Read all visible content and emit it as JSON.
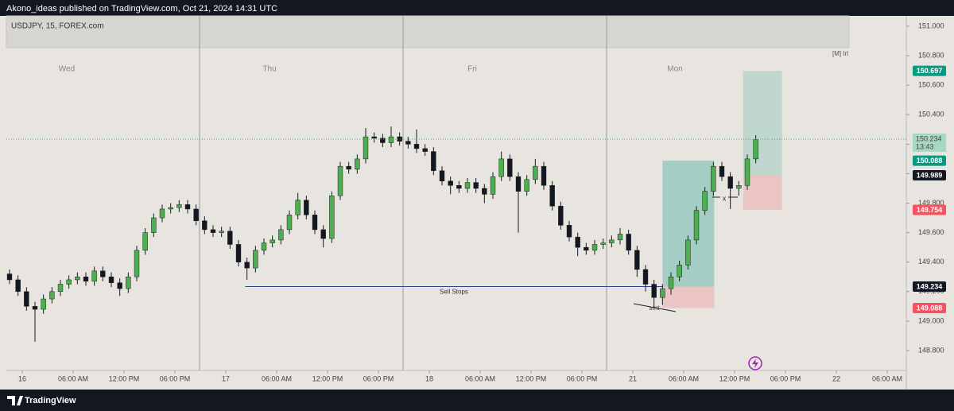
{
  "header": "Akono_ideas published on TradingView.com, Oct 21, 2024 14:31 UTC",
  "footer": "TradingView",
  "chart_data": {
    "type": "candlestick",
    "title": "USDJPY, 15, FOREX.com",
    "day_labels": [
      "Wed",
      "Thu",
      "Fri",
      "Mon"
    ],
    "indicator_label": "[M] Irl",
    "up_color": "#4caf50",
    "down_color": "#131722",
    "x": [
      -1.5,
      -0.5,
      0.5,
      1.5,
      2.5,
      3.5,
      4.5,
      5.5,
      6.5,
      7.5,
      8.5,
      9.5,
      10.5,
      11.5,
      12.5,
      13.5,
      14.5,
      15.5,
      16.5,
      17.5,
      18.5,
      19.5,
      20.5,
      21.5,
      22.5,
      23.5,
      24.5,
      25.5,
      26.5,
      27.5,
      28.5,
      29.5,
      30.5,
      31.5,
      32.5,
      33.5,
      34.5,
      35.5,
      36.5,
      37.5,
      38.5,
      39.5,
      40.5,
      41.5,
      42.5,
      43.5,
      44.5,
      45.5,
      46.5,
      47.5,
      48.5,
      49.5,
      50.5,
      51.5,
      52.5,
      53.5,
      54.5,
      55.5,
      56.5,
      57.5,
      58.5,
      59.5,
      60.5,
      61.5,
      62.5,
      63.5,
      64.5,
      65.5,
      66.5,
      67.5,
      68.5,
      69.5,
      70.5,
      71.5,
      72.5,
      73.5,
      74.5,
      75.5,
      76.5,
      77.5,
      78.5,
      79.5,
      80.5,
      81.5,
      82.5,
      83.5,
      84.5,
      85.5,
      86.5
    ],
    "open": [
      149.32,
      149.28,
      149.2,
      149.1,
      149.08,
      149.15,
      149.2,
      149.25,
      149.28,
      149.3,
      149.27,
      149.34,
      149.3,
      149.26,
      149.22,
      149.3,
      149.48,
      149.6,
      149.7,
      149.76,
      149.77,
      149.79,
      149.76,
      149.68,
      149.62,
      149.6,
      149.61,
      149.52,
      149.4,
      149.36,
      149.48,
      149.53,
      149.55,
      149.62,
      149.72,
      149.82,
      149.72,
      149.62,
      149.56,
      149.85,
      150.05,
      150.03,
      150.1,
      150.25,
      150.24,
      150.21,
      150.25,
      150.22,
      150.2,
      150.17,
      150.15,
      150.02,
      149.95,
      149.92,
      149.9,
      149.94,
      149.9,
      149.86,
      149.98,
      150.1,
      149.98,
      149.88,
      149.96,
      150.05,
      149.92,
      149.78,
      149.65,
      149.57,
      149.5,
      149.48,
      149.52,
      149.53,
      149.55,
      149.59,
      149.48,
      149.35,
      149.25,
      149.16,
      149.22,
      149.3,
      149.38,
      149.55,
      149.75,
      149.88,
      150.05,
      149.98,
      149.9,
      149.92,
      150.1
    ],
    "high": [
      149.35,
      149.31,
      149.23,
      149.13,
      149.18,
      149.23,
      149.28,
      149.31,
      149.33,
      149.33,
      149.37,
      149.37,
      149.33,
      149.29,
      149.33,
      149.51,
      149.63,
      149.73,
      149.79,
      149.8,
      149.82,
      149.82,
      149.79,
      149.71,
      149.65,
      149.64,
      149.64,
      149.55,
      149.43,
      149.51,
      149.56,
      149.58,
      149.65,
      149.75,
      149.87,
      149.85,
      149.75,
      149.65,
      149.88,
      150.08,
      150.08,
      150.13,
      150.31,
      150.28,
      150.27,
      150.32,
      150.28,
      150.25,
      150.3,
      150.2,
      150.18,
      150.05,
      149.98,
      149.95,
      149.97,
      149.97,
      149.93,
      150.01,
      150.15,
      150.13,
      150.01,
      149.99,
      150.1,
      150.08,
      149.95,
      149.81,
      149.68,
      149.6,
      149.53,
      149.55,
      149.56,
      149.58,
      149.63,
      149.62,
      149.51,
      149.38,
      149.28,
      149.25,
      149.33,
      149.41,
      149.58,
      149.78,
      149.91,
      150.08,
      150.08,
      150.01,
      149.95,
      150.13,
      150.26
    ],
    "low": [
      149.25,
      149.17,
      149.07,
      148.86,
      149.05,
      149.12,
      149.17,
      149.22,
      149.25,
      149.24,
      149.24,
      149.27,
      149.23,
      149.17,
      149.19,
      149.27,
      149.45,
      149.57,
      149.67,
      149.73,
      149.74,
      149.73,
      149.65,
      149.59,
      149.57,
      149.57,
      149.49,
      149.37,
      149.28,
      149.33,
      149.45,
      149.5,
      149.52,
      149.59,
      149.69,
      149.69,
      149.59,
      149.5,
      149.53,
      149.82,
      150.0,
      150.0,
      150.07,
      150.21,
      150.18,
      150.18,
      150.19,
      150.17,
      150.14,
      150.12,
      149.99,
      149.92,
      149.86,
      149.87,
      149.87,
      149.87,
      149.8,
      149.83,
      149.95,
      149.95,
      149.6,
      149.85,
      149.93,
      149.89,
      149.75,
      149.62,
      149.54,
      149.44,
      149.45,
      149.45,
      149.49,
      149.5,
      149.52,
      149.45,
      149.3,
      149.2,
      149.09,
      149.11,
      149.18,
      149.27,
      149.35,
      149.52,
      149.72,
      149.85,
      149.95,
      149.76,
      149.85,
      149.89,
      150.07
    ],
    "close": [
      149.28,
      149.2,
      149.1,
      149.08,
      149.15,
      149.2,
      149.25,
      149.28,
      149.3,
      149.27,
      149.34,
      149.3,
      149.26,
      149.22,
      149.3,
      149.48,
      149.6,
      149.7,
      149.76,
      149.77,
      149.79,
      149.76,
      149.68,
      149.62,
      149.6,
      149.61,
      149.52,
      149.4,
      149.36,
      149.48,
      149.53,
      149.55,
      149.62,
      149.72,
      149.82,
      149.72,
      149.62,
      149.56,
      149.85,
      150.05,
      150.03,
      150.1,
      150.25,
      150.24,
      150.21,
      150.25,
      150.22,
      150.2,
      150.17,
      150.15,
      150.02,
      149.95,
      149.92,
      149.9,
      149.94,
      149.9,
      149.86,
      149.98,
      150.1,
      149.98,
      149.88,
      149.96,
      150.05,
      149.92,
      149.78,
      149.65,
      149.57,
      149.5,
      149.48,
      149.52,
      149.53,
      149.55,
      149.59,
      149.48,
      149.35,
      149.25,
      149.16,
      149.22,
      149.3,
      149.38,
      149.55,
      149.75,
      149.88,
      150.05,
      149.98,
      149.9,
      149.92,
      150.1,
      150.23
    ],
    "xlim": [
      -1.875,
      104.25
    ],
    "xticks": [
      {
        "value": 0,
        "label": "16"
      },
      {
        "value": 6,
        "label": "06:00 AM"
      },
      {
        "value": 12,
        "label": "12:00 PM"
      },
      {
        "value": 18,
        "label": "06:00 PM"
      },
      {
        "value": 24,
        "label": "17"
      },
      {
        "value": 30,
        "label": "06:00 AM"
      },
      {
        "value": 36,
        "label": "12:00 PM"
      },
      {
        "value": 42,
        "label": "06:00 PM"
      },
      {
        "value": 48,
        "label": "18"
      },
      {
        "value": 54,
        "label": "06:00 AM"
      },
      {
        "value": 60,
        "label": "12:00 PM"
      },
      {
        "value": 66,
        "label": "06:00 PM"
      },
      {
        "value": 72,
        "label": "21"
      },
      {
        "value": 78,
        "label": "06:00 AM"
      },
      {
        "value": 84,
        "label": "12:00 PM"
      },
      {
        "value": 90,
        "label": "06:00 PM"
      },
      {
        "value": 96,
        "label": "22"
      },
      {
        "value": 102,
        "label": "06:00 AM"
      }
    ],
    "ylim": [
      148.665,
      151.07
    ],
    "yticks": [
      {
        "value": 148.8,
        "label": "148.800"
      },
      {
        "value": 149.0,
        "label": "149.000"
      },
      {
        "value": 149.2,
        "label": "149.200"
      },
      {
        "value": 149.4,
        "label": "149.400"
      },
      {
        "value": 149.6,
        "label": "149.600"
      },
      {
        "value": 149.8,
        "label": "149.800"
      },
      {
        "value": 150.0,
        "label": "150.000"
      },
      {
        "value": 150.2,
        "label": "150.200"
      },
      {
        "value": 150.4,
        "label": "150.400"
      },
      {
        "value": 150.6,
        "label": "150.600"
      },
      {
        "value": 150.8,
        "label": "150.800"
      },
      {
        "value": 151.0,
        "label": "151.000"
      }
    ],
    "grid": false,
    "current_price": {
      "value": 150.234,
      "countdown": "13:43"
    },
    "sell_stops": {
      "label": "Sell Stops",
      "price": 149.234,
      "x": [
        26.3,
        75.5
      ]
    },
    "annotations": [
      "smt",
      "x"
    ],
    "positions": [
      {
        "entry": 149.234,
        "target": 150.088,
        "stop": 149.088,
        "x": [
          75.5,
          81.6
        ]
      },
      {
        "entry": 149.989,
        "target": 150.697,
        "stop": 149.754,
        "x": [
          85.0,
          89.6
        ]
      }
    ]
  }
}
